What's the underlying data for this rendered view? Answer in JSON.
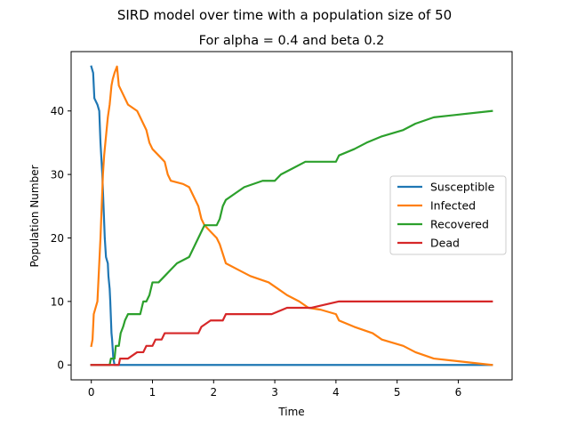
{
  "chart_data": {
    "type": "line",
    "suptitle": "SIRD model over time with a population size of 50",
    "title": "For alpha = 0.4 and beta 0.2",
    "xlabel": "Time",
    "ylabel": "Population Number",
    "xlim": [
      -0.33,
      6.88
    ],
    "ylim": [
      -2.35,
      49.35
    ],
    "xticks": [
      0,
      1,
      2,
      3,
      4,
      5,
      6
    ],
    "yticks": [
      0,
      10,
      20,
      30,
      40
    ],
    "grid": false,
    "legend_position": "center-right",
    "series": [
      {
        "name": "Susceptible",
        "color": "#1f77b4",
        "points": [
          [
            0,
            47
          ],
          [
            0.03,
            46
          ],
          [
            0.05,
            42
          ],
          [
            0.1,
            41
          ],
          [
            0.13,
            40
          ],
          [
            0.15,
            35
          ],
          [
            0.18,
            30
          ],
          [
            0.2,
            25
          ],
          [
            0.22,
            20
          ],
          [
            0.24,
            17
          ],
          [
            0.27,
            16
          ],
          [
            0.28,
            14
          ],
          [
            0.3,
            12
          ],
          [
            0.31,
            10
          ],
          [
            0.33,
            5
          ],
          [
            0.34,
            4
          ],
          [
            0.36,
            1
          ],
          [
            0.38,
            0
          ],
          [
            0.45,
            0
          ],
          [
            6.55,
            0
          ]
        ]
      },
      {
        "name": "Infected",
        "color": "#ff7f0e",
        "points": [
          [
            0,
            3
          ],
          [
            0.02,
            4
          ],
          [
            0.04,
            8
          ],
          [
            0.1,
            10
          ],
          [
            0.13,
            16
          ],
          [
            0.15,
            20
          ],
          [
            0.17,
            25
          ],
          [
            0.19,
            30
          ],
          [
            0.21,
            33
          ],
          [
            0.23,
            35
          ],
          [
            0.25,
            37
          ],
          [
            0.27,
            39
          ],
          [
            0.3,
            41
          ],
          [
            0.33,
            44
          ],
          [
            0.35,
            45
          ],
          [
            0.38,
            46
          ],
          [
            0.42,
            47
          ],
          [
            0.45,
            44
          ],
          [
            0.5,
            43
          ],
          [
            0.6,
            41
          ],
          [
            0.75,
            40
          ],
          [
            0.85,
            38
          ],
          [
            0.9,
            37
          ],
          [
            0.95,
            35
          ],
          [
            1.0,
            34
          ],
          [
            1.1,
            33
          ],
          [
            1.2,
            32
          ],
          [
            1.25,
            30
          ],
          [
            1.3,
            29
          ],
          [
            1.5,
            28.5
          ],
          [
            1.6,
            28
          ],
          [
            1.7,
            26
          ],
          [
            1.75,
            25
          ],
          [
            1.8,
            23
          ],
          [
            1.85,
            22
          ],
          [
            1.95,
            21
          ],
          [
            2.05,
            20
          ],
          [
            2.1,
            19
          ],
          [
            2.2,
            16
          ],
          [
            2.4,
            15
          ],
          [
            2.6,
            14
          ],
          [
            2.9,
            13
          ],
          [
            3.05,
            12
          ],
          [
            3.2,
            11
          ],
          [
            3.4,
            10
          ],
          [
            3.55,
            9
          ],
          [
            3.75,
            8.7
          ],
          [
            4.0,
            8
          ],
          [
            4.05,
            7
          ],
          [
            4.3,
            6
          ],
          [
            4.6,
            5
          ],
          [
            4.75,
            4
          ],
          [
            5.1,
            3
          ],
          [
            5.3,
            2
          ],
          [
            5.6,
            1
          ],
          [
            6.55,
            0
          ]
        ]
      },
      {
        "name": "Recovered",
        "color": "#2ca02c",
        "points": [
          [
            0,
            0
          ],
          [
            0.3,
            0
          ],
          [
            0.32,
            1
          ],
          [
            0.38,
            1
          ],
          [
            0.4,
            3
          ],
          [
            0.45,
            3
          ],
          [
            0.48,
            5
          ],
          [
            0.52,
            6
          ],
          [
            0.55,
            7
          ],
          [
            0.6,
            8
          ],
          [
            0.8,
            8
          ],
          [
            0.85,
            10
          ],
          [
            0.9,
            10
          ],
          [
            0.95,
            11
          ],
          [
            1.0,
            13
          ],
          [
            1.1,
            13
          ],
          [
            1.2,
            14
          ],
          [
            1.3,
            15
          ],
          [
            1.4,
            16
          ],
          [
            1.6,
            17
          ],
          [
            1.7,
            19
          ],
          [
            1.75,
            20
          ],
          [
            1.8,
            21
          ],
          [
            1.85,
            22
          ],
          [
            2.05,
            22
          ],
          [
            2.1,
            23
          ],
          [
            2.15,
            25
          ],
          [
            2.2,
            26
          ],
          [
            2.35,
            27
          ],
          [
            2.5,
            28
          ],
          [
            2.8,
            29
          ],
          [
            3.0,
            29
          ],
          [
            3.1,
            30
          ],
          [
            3.3,
            31
          ],
          [
            3.5,
            32
          ],
          [
            3.75,
            32
          ],
          [
            4.0,
            32
          ],
          [
            4.05,
            33
          ],
          [
            4.3,
            34
          ],
          [
            4.5,
            35
          ],
          [
            4.75,
            36
          ],
          [
            5.1,
            37
          ],
          [
            5.3,
            38
          ],
          [
            5.6,
            39
          ],
          [
            6.55,
            40
          ]
        ]
      },
      {
        "name": "Dead",
        "color": "#d62728",
        "points": [
          [
            0,
            0
          ],
          [
            0.45,
            0
          ],
          [
            0.47,
            1
          ],
          [
            0.6,
            1
          ],
          [
            0.75,
            2
          ],
          [
            0.85,
            2
          ],
          [
            0.9,
            3
          ],
          [
            1.0,
            3
          ],
          [
            1.05,
            4
          ],
          [
            1.15,
            4
          ],
          [
            1.2,
            5
          ],
          [
            1.75,
            5
          ],
          [
            1.8,
            6
          ],
          [
            1.95,
            7
          ],
          [
            2.15,
            7
          ],
          [
            2.2,
            8
          ],
          [
            2.95,
            8
          ],
          [
            3.2,
            9
          ],
          [
            3.6,
            9
          ],
          [
            4.05,
            10
          ],
          [
            6.55,
            10
          ]
        ]
      }
    ]
  }
}
